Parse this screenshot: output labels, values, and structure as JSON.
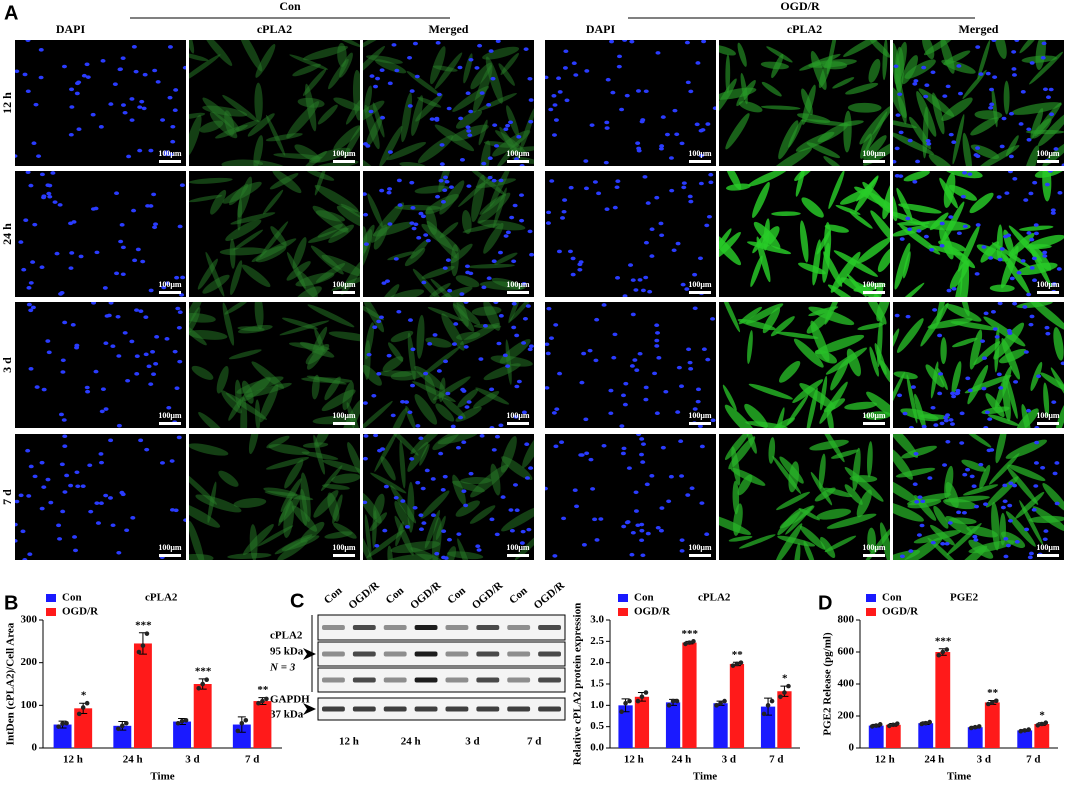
{
  "panel_labels": [
    "A",
    "B",
    "C",
    "D"
  ],
  "panel_a": {
    "groups": [
      "Con",
      "OGD/R"
    ],
    "columns": [
      "DAPI",
      "cPLA2",
      "Merged"
    ],
    "rows": [
      "12 h",
      "24 h",
      "3 d",
      "7 d"
    ],
    "scale_bar": "100μm"
  },
  "blot": {
    "lanes": [
      "Con",
      "OGD/R",
      "Con",
      "OGD/R",
      "Con",
      "OGD/R",
      "Con",
      "OGD/R"
    ],
    "target": "cPLA2",
    "target_size": "95 kDa",
    "n": "N = 3",
    "control": "GAPDH",
    "control_size": "37 kDa",
    "times": [
      "12 h",
      "24 h",
      "3 d",
      "7 d"
    ]
  },
  "chart_data": [
    {
      "type": "bar",
      "title": "cPLA2",
      "xlabel": "Time",
      "ylabel": "IntDen (cPLA2)/Cell Area",
      "categories": [
        "12 h",
        "24 h",
        "3 d",
        "7 d"
      ],
      "ylim": [
        0,
        300
      ],
      "yticks": [
        0,
        100,
        200,
        300
      ],
      "series": [
        {
          "name": "Con",
          "color": "#1a1aff",
          "values": [
            55,
            52,
            62,
            55
          ],
          "errors": [
            8,
            10,
            7,
            18
          ],
          "points": [
            [
              50,
              57,
              58
            ],
            [
              45,
              52,
              58
            ],
            [
              58,
              63,
              65
            ],
            [
              40,
              58,
              65
            ]
          ]
        },
        {
          "name": "OGD/R",
          "color": "#ff1a1a",
          "values": [
            93,
            245,
            150,
            110
          ],
          "errors": [
            12,
            25,
            12,
            8
          ],
          "points": [
            [
              80,
              95,
              105
            ],
            [
              225,
              240,
              268
            ],
            [
              140,
              150,
              160
            ],
            [
              105,
              110,
              115
            ]
          ]
        }
      ],
      "significance": [
        "*",
        "***",
        "***",
        "**"
      ]
    },
    {
      "type": "bar",
      "title": "cPLA2",
      "xlabel": "Time",
      "ylabel": "Relative cPLA2 protein expression",
      "categories": [
        "12 h",
        "24 h",
        "3 d",
        "7 d"
      ],
      "ylim": [
        0,
        3
      ],
      "yticks": [
        {
          "value": 0,
          "label": "0.0"
        },
        0.5,
        {
          "value": 1,
          "label": "1.0"
        },
        1.5,
        {
          "value": 2,
          "label": "2.0"
        },
        2.5,
        {
          "value": 3,
          "label": "3.0"
        }
      ],
      "series": [
        {
          "name": "Con",
          "color": "#1a1aff",
          "values": [
            1.0,
            1.07,
            1.05,
            0.97
          ],
          "errors": [
            0.15,
            0.07,
            0.05,
            0.2
          ],
          "points": [
            [
              0.85,
              1.05,
              1.1
            ],
            [
              1.0,
              1.1,
              1.1
            ],
            [
              1.0,
              1.05,
              1.1
            ],
            [
              0.8,
              1.0,
              1.1
            ]
          ]
        },
        {
          "name": "OGD/R",
          "color": "#ff1a1a",
          "values": [
            1.2,
            2.47,
            1.97,
            1.33
          ],
          "errors": [
            0.1,
            0.03,
            0.04,
            0.12
          ],
          "points": [
            [
              1.1,
              1.2,
              1.3
            ],
            [
              2.44,
              2.47,
              2.5
            ],
            [
              1.93,
              1.97,
              2.0
            ],
            [
              1.2,
              1.3,
              1.45
            ]
          ]
        }
      ],
      "significance": [
        null,
        "***",
        "**",
        "*"
      ]
    },
    {
      "type": "bar",
      "title": "PGE2",
      "xlabel": "Time",
      "ylabel": "PGE2 Release (pg/ml)",
      "categories": [
        "12 h",
        "24 h",
        "3 d",
        "7 d"
      ],
      "ylim": [
        0,
        800
      ],
      "yticks": [
        0,
        200,
        400,
        600,
        800
      ],
      "series": [
        {
          "name": "Con",
          "color": "#1a1aff",
          "values": [
            140,
            155,
            130,
            110
          ],
          "errors": [
            8,
            8,
            5,
            5
          ],
          "points": [
            [
              135,
              140,
              148
            ],
            [
              150,
              155,
              162
            ],
            [
              125,
              130,
              135
            ],
            [
              105,
              110,
              115
            ]
          ]
        },
        {
          "name": "OGD/R",
          "color": "#ff1a1a",
          "values": [
            145,
            600,
            285,
            150
          ],
          "errors": [
            8,
            20,
            12,
            8
          ],
          "points": [
            [
              138,
              145,
              152
            ],
            [
              580,
              600,
              615
            ],
            [
              275,
              285,
              295
            ],
            [
              142,
              150,
              158
            ]
          ]
        }
      ],
      "significance": [
        null,
        "***",
        "**",
        "*"
      ]
    }
  ]
}
